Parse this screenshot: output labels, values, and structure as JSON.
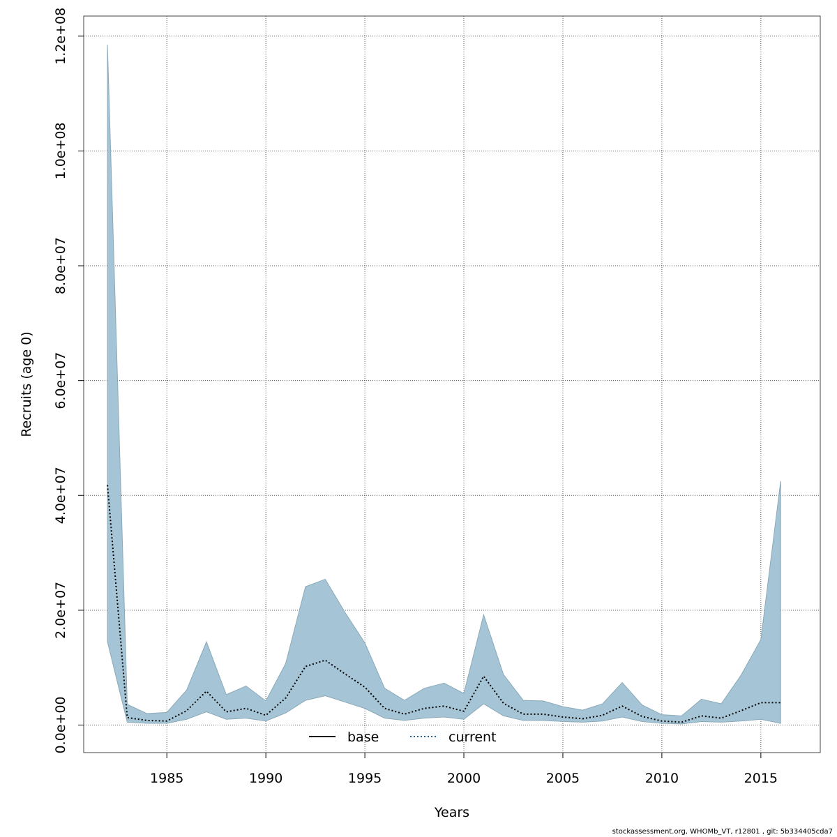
{
  "chart_data": {
    "type": "area",
    "xlabel": "Years",
    "ylabel": "Recruits (age 0)",
    "xlim": [
      1980.8,
      2018.0
    ],
    "ylim": [
      -4800000,
      123500000
    ],
    "x_ticks": [
      1985,
      1990,
      1995,
      2000,
      2005,
      2010,
      2015
    ],
    "y_ticks": [
      0,
      20000000,
      40000000,
      60000000,
      80000000,
      100000000,
      120000000
    ],
    "y_tick_labels": [
      "0.0e+00",
      "2.0e+07",
      "4.0e+07",
      "6.0e+07",
      "8.0e+07",
      "1.0e+08",
      "1.2e+08"
    ],
    "grid": true,
    "legend": {
      "placement": "bottom-center",
      "entries": [
        {
          "label": "base",
          "style": "solid",
          "color": "#000000"
        },
        {
          "label": "current",
          "style": "dotted",
          "color": "#1f5f8b"
        }
      ]
    },
    "band_color": "#a5c5d6",
    "years": [
      1982,
      1983,
      1984,
      1985,
      1986,
      1987,
      1988,
      1989,
      1990,
      1991,
      1992,
      1993,
      1994,
      1995,
      1996,
      1997,
      1998,
      1999,
      2000,
      2001,
      2002,
      2003,
      2004,
      2005,
      2006,
      2007,
      2008,
      2009,
      2010,
      2011,
      2012,
      2013,
      2014,
      2015,
      2016
    ],
    "series": [
      {
        "name": "current",
        "values": [
          41800000,
          1300000,
          800000,
          700000,
          2500000,
          5900000,
          2300000,
          2900000,
          1700000,
          4700000,
          10200000,
          11300000,
          8900000,
          6600000,
          2900000,
          1900000,
          2900000,
          3300000,
          2400000,
          8500000,
          3800000,
          1900000,
          1900000,
          1400000,
          1100000,
          1700000,
          3300000,
          1500000,
          700000,
          500000,
          1600000,
          1200000,
          2500000,
          3900000,
          3900000
        ]
      }
    ],
    "band_upper": [
      118500000,
      3600000,
      2000000,
      2200000,
      6100000,
      14500000,
      5300000,
      6800000,
      4200000,
      10700000,
      24100000,
      25400000,
      19600000,
      14300000,
      6400000,
      4300000,
      6400000,
      7300000,
      5500000,
      19200000,
      8800000,
      4300000,
      4200000,
      3200000,
      2600000,
      3700000,
      7400000,
      3500000,
      1800000,
      1600000,
      4500000,
      3700000,
      8700000,
      14900000,
      42500000
    ],
    "band_lower": [
      14500000,
      500000,
      300000,
      300000,
      1000000,
      2300000,
      1000000,
      1200000,
      700000,
      2100000,
      4300000,
      5100000,
      4000000,
      2900000,
      1200000,
      800000,
      1200000,
      1400000,
      1000000,
      3700000,
      1600000,
      800000,
      800000,
      600000,
      500000,
      700000,
      1400000,
      600000,
      300000,
      200000,
      600000,
      500000,
      700000,
      1000000,
      300000
    ]
  },
  "footer": {
    "text": "stockassessment.org, WHOMb_VT, r12801 , git: 5b334405cda7"
  }
}
